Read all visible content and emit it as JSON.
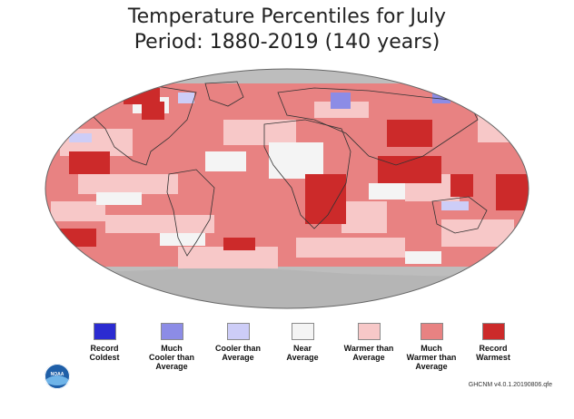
{
  "title": {
    "line1": "Temperature Percentiles for July",
    "line2": "Period: 1880-2019 (140 years)"
  },
  "colors": {
    "record_coldest": "#2b2bd1",
    "much_cooler": "#8c8ce6",
    "cooler": "#cdcdf7",
    "near": "#f4f4f4",
    "warmer": "#f7c8c8",
    "much_warmer": "#e88282",
    "record_warmest": "#cc2a2a",
    "missing": "#bdbdbd"
  },
  "legend": [
    {
      "key": "record_coldest",
      "label": [
        "Record",
        "Coldest"
      ]
    },
    {
      "key": "much_cooler",
      "label": [
        "Much",
        "Cooler than",
        "Average"
      ]
    },
    {
      "key": "cooler",
      "label": [
        "Cooler than",
        "Average"
      ]
    },
    {
      "key": "near",
      "label": [
        "Near",
        "Average"
      ]
    },
    {
      "key": "warmer",
      "label": [
        "Warmer than",
        "Average"
      ]
    },
    {
      "key": "much_warmer",
      "label": [
        "Much",
        "Warmer than",
        "Average"
      ]
    },
    {
      "key": "record_warmest",
      "label": [
        "Record",
        "Warmest"
      ]
    }
  ],
  "logo": {
    "text": "NOAA"
  },
  "source": "GHCNM v4.0.1.20190806.qfe"
}
